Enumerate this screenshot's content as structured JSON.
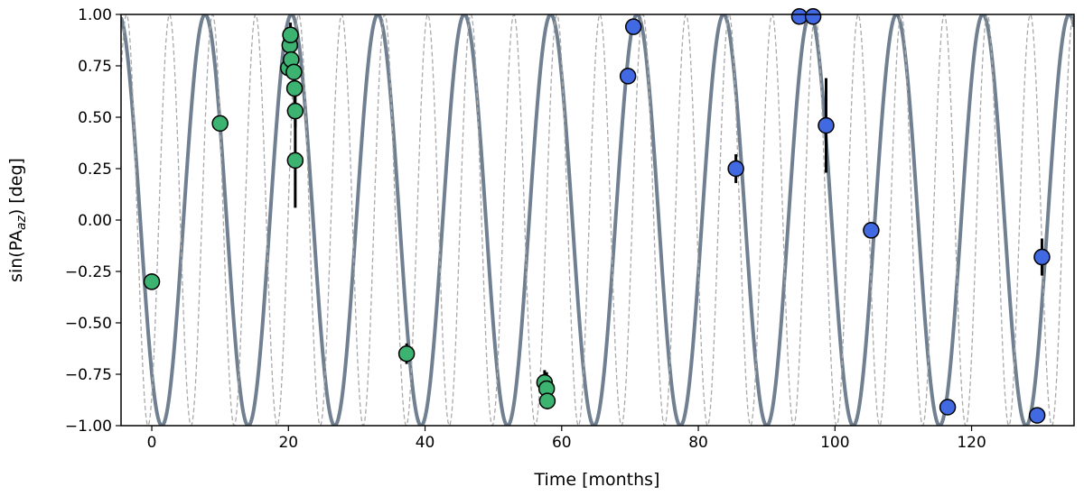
{
  "chart_data": {
    "type": "scatter",
    "xlabel": "Time [months]",
    "ylabel": {
      "prefix": "sin(PA",
      "subscript": "az",
      "suffix": ") [deg]"
    },
    "xlim": [
      -4.5,
      135
    ],
    "ylim": [
      -1.0,
      1.0
    ],
    "x_ticks": [
      0,
      20,
      40,
      60,
      80,
      100,
      120
    ],
    "y_ticks": [
      -1.0,
      -0.75,
      -0.5,
      -0.25,
      0.0,
      0.25,
      0.5,
      0.75,
      1.0
    ],
    "x_tick_labels": [
      "0",
      "20",
      "40",
      "60",
      "80",
      "100",
      "120"
    ],
    "y_tick_labels": [
      "−1.00",
      "−0.75",
      "−0.50",
      "−0.25",
      "0.00",
      "0.25",
      "0.50",
      "0.75",
      "1.00"
    ],
    "grid": false,
    "model_curves": [
      {
        "style": "solid",
        "color": "#708090",
        "period": 12.65,
        "phase_peak": 7.8,
        "note": ""
      },
      {
        "style": "dashed",
        "color": "#aaaaaa",
        "period": 6.3,
        "phase_peak": 2.6,
        "note": ""
      }
    ],
    "series": [
      {
        "color": "#3cb371",
        "points": [
          {
            "x": 0.0,
            "y": -0.3,
            "err": 0.04
          },
          {
            "x": 10.0,
            "y": 0.47,
            "err": 0.02
          },
          {
            "x": 20.0,
            "y": 0.74,
            "err": 0.03
          },
          {
            "x": 20.2,
            "y": 0.85,
            "err": 0.05
          },
          {
            "x": 20.3,
            "y": 0.9,
            "err": 0.06
          },
          {
            "x": 20.4,
            "y": 0.78,
            "err": 0.04
          },
          {
            "x": 20.8,
            "y": 0.72,
            "err": 0.05
          },
          {
            "x": 20.9,
            "y": 0.64,
            "err": 0.1
          },
          {
            "x": 21.0,
            "y": 0.53,
            "err": 0.08
          },
          {
            "x": 21.0,
            "y": 0.29,
            "err": 0.23
          },
          {
            "x": 37.3,
            "y": -0.65,
            "err": 0.05
          },
          {
            "x": 57.5,
            "y": -0.79,
            "err": 0.06
          },
          {
            "x": 57.8,
            "y": -0.82,
            "err": 0.08
          },
          {
            "x": 57.9,
            "y": -0.88,
            "err": 0.04
          }
        ]
      },
      {
        "color": "#4169e1",
        "points": [
          {
            "x": 69.7,
            "y": 0.7,
            "err": 0.02
          },
          {
            "x": 70.5,
            "y": 0.94,
            "err": 0.02
          },
          {
            "x": 85.5,
            "y": 0.25,
            "err": 0.07
          },
          {
            "x": 94.8,
            "y": 0.99,
            "err": 0.01
          },
          {
            "x": 96.8,
            "y": 0.99,
            "err": 0.01
          },
          {
            "x": 98.7,
            "y": 0.46,
            "err": 0.23
          },
          {
            "x": 105.3,
            "y": -0.05,
            "err": 0.04
          },
          {
            "x": 116.5,
            "y": -0.91,
            "err": 0.02
          },
          {
            "x": 129.6,
            "y": -0.95,
            "err": 0.02
          },
          {
            "x": 130.3,
            "y": -0.18,
            "err": 0.09
          }
        ]
      }
    ]
  }
}
